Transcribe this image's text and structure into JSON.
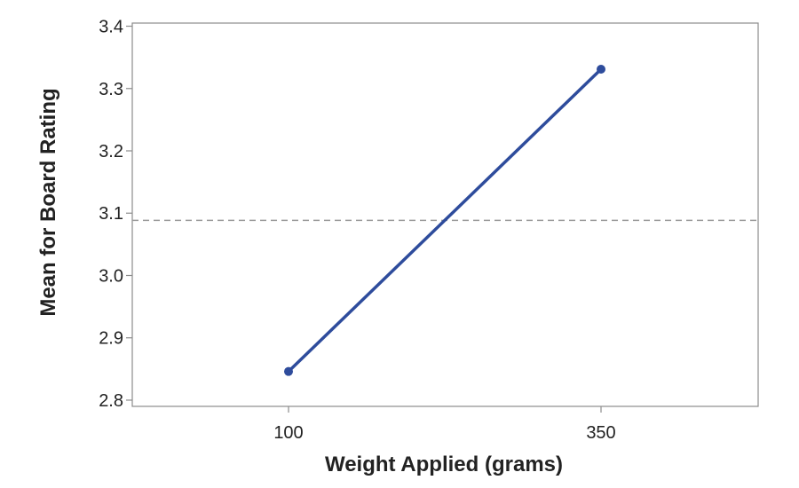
{
  "chart_data": {
    "type": "line",
    "title": "",
    "xlabel": "Weight Applied (grams)",
    "ylabel": "Mean for Board Rating",
    "categories": [
      "100",
      "350"
    ],
    "series": [
      {
        "values": [
          2.846,
          3.331
        ]
      }
    ],
    "reference_line": {
      "y": 3.0885,
      "style": "dashed"
    },
    "ylim": [
      2.79,
      3.405
    ],
    "yticks": [
      "2.8",
      "2.9",
      "3.0",
      "3.1",
      "3.2",
      "3.3",
      "3.4"
    ],
    "grid": false,
    "legend": "none",
    "colors": {
      "series": "#2e4c9c",
      "reference": "#9a9a9a",
      "frame": "#8c8c8c"
    }
  }
}
